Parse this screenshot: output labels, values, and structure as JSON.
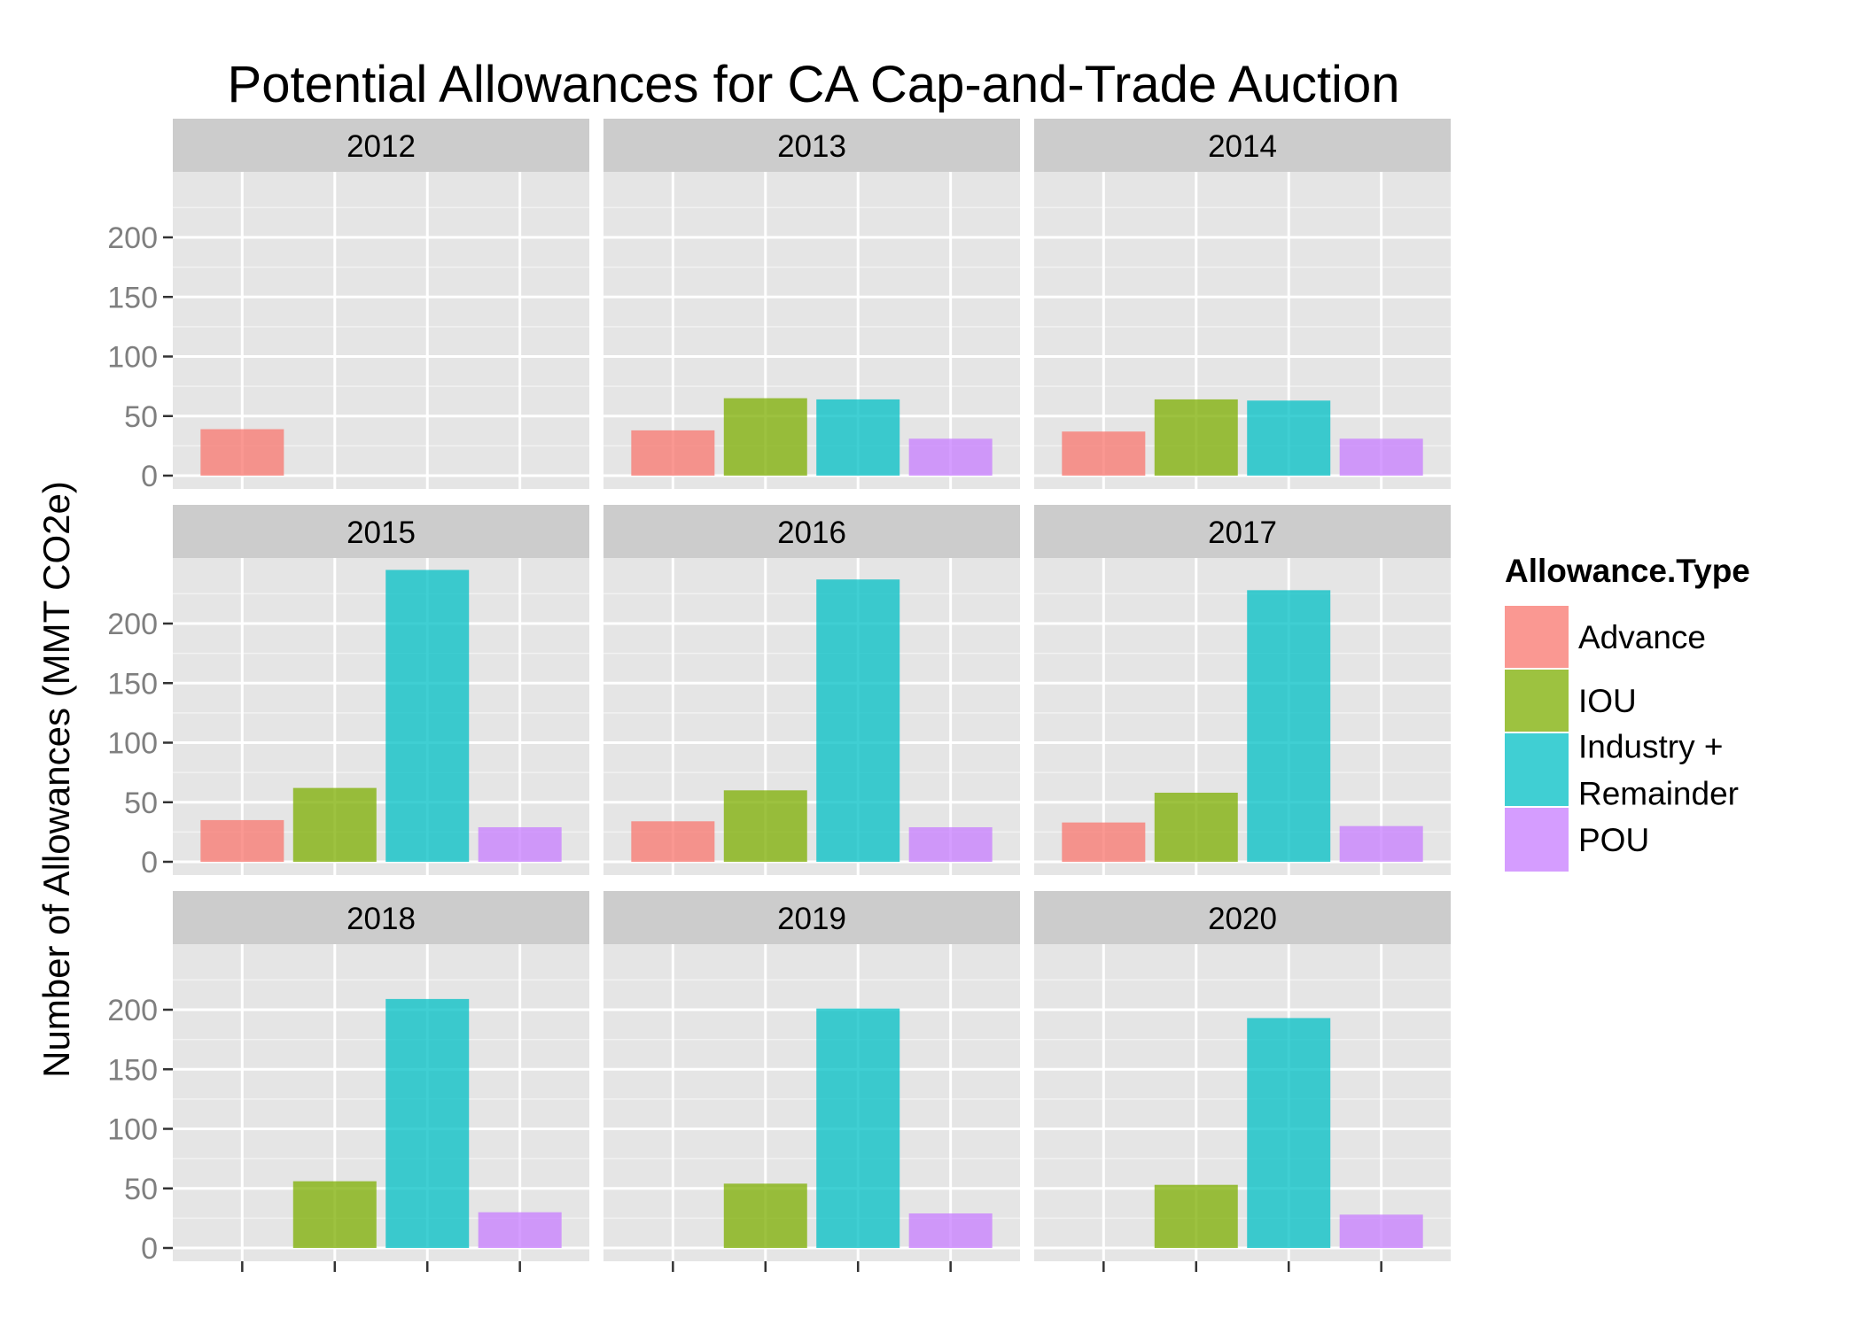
{
  "chart_data": {
    "type": "bar",
    "title": "Potential Allowances for CA Cap-and-Trade Auction",
    "xlabel": "",
    "ylabel": "Number of Allowances (MMT CO2e)",
    "ylim": [
      0,
      245
    ],
    "yticks": [
      0,
      50,
      100,
      150,
      200
    ],
    "facet_layout": "3x3 grid",
    "grid": true,
    "legend": {
      "title": "Allowance.Type",
      "position": "right",
      "entries": [
        {
          "name": "Advance",
          "label_lines": [
            "Advance"
          ],
          "color": "#F8766D"
        },
        {
          "name": "IOU",
          "label_lines": [
            "IOU"
          ],
          "color": "#7CAE00"
        },
        {
          "name": "Industry + Remainder",
          "label_lines": [
            "Industry +",
            "Remainder"
          ],
          "color": "#00BFC4"
        },
        {
          "name": "POU",
          "label_lines": [
            "POU"
          ],
          "color": "#C77CFF"
        }
      ]
    },
    "categories": [
      "Advance",
      "IOU",
      "Industry + Remainder",
      "POU"
    ],
    "panels": [
      {
        "facet": "2012",
        "values": [
          39,
          null,
          null,
          null
        ]
      },
      {
        "facet": "2013",
        "values": [
          38,
          65,
          64,
          31
        ]
      },
      {
        "facet": "2014",
        "values": [
          37,
          64,
          63,
          31
        ]
      },
      {
        "facet": "2015",
        "values": [
          35,
          62,
          245,
          29
        ]
      },
      {
        "facet": "2016",
        "values": [
          34,
          60,
          237,
          29
        ]
      },
      {
        "facet": "2017",
        "values": [
          33,
          58,
          228,
          30
        ]
      },
      {
        "facet": "2018",
        "values": [
          null,
          56,
          209,
          30
        ]
      },
      {
        "facet": "2019",
        "values": [
          null,
          54,
          201,
          29
        ]
      },
      {
        "facet": "2020",
        "values": [
          null,
          53,
          193,
          28
        ]
      }
    ]
  },
  "colors": {
    "panel_bg": "#E5E5E5",
    "strip_bg": "#CCCCCC",
    "grid_major": "#FFFFFF",
    "grid_minor": "#F2F2F2",
    "tick_text": "#7F7F7F",
    "text": "#000000"
  }
}
